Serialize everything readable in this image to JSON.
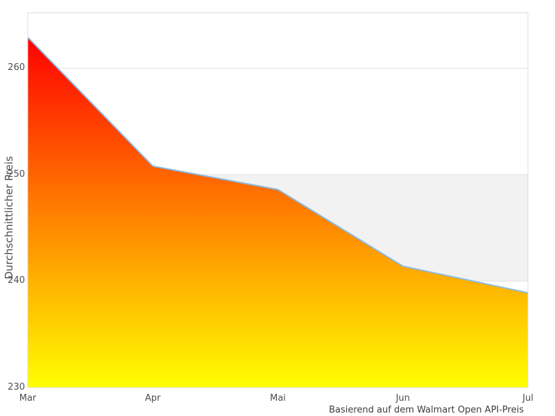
{
  "chart_data": {
    "type": "area",
    "title": "",
    "categories": [
      "Mar",
      "Apr",
      "Mai",
      "Jun",
      "Jul"
    ],
    "values": [
      262.9,
      250.8,
      248.6,
      241.4,
      238.9
    ],
    "xlabel": "Basierend auf dem Walmart Open API-Preis",
    "ylabel": "Durchschnittlicher Preis",
    "ylim": [
      230,
      265.2
    ],
    "yticks": [
      230,
      240,
      250,
      260
    ],
    "grid": true,
    "legend": "none",
    "plot_band": {
      "from": 240,
      "to": 250,
      "color": "#f2f2f2"
    },
    "colors": {
      "line": "#8ab9e3",
      "gradient_top": "#ff0000",
      "gradient_bottom": "#ffff00",
      "grid_line": "#e1e1e1",
      "border": "#dcdcdc",
      "tick_text": "#4d4d4d",
      "caption_text": "#3d3d3d",
      "background": "#ffffff"
    }
  }
}
